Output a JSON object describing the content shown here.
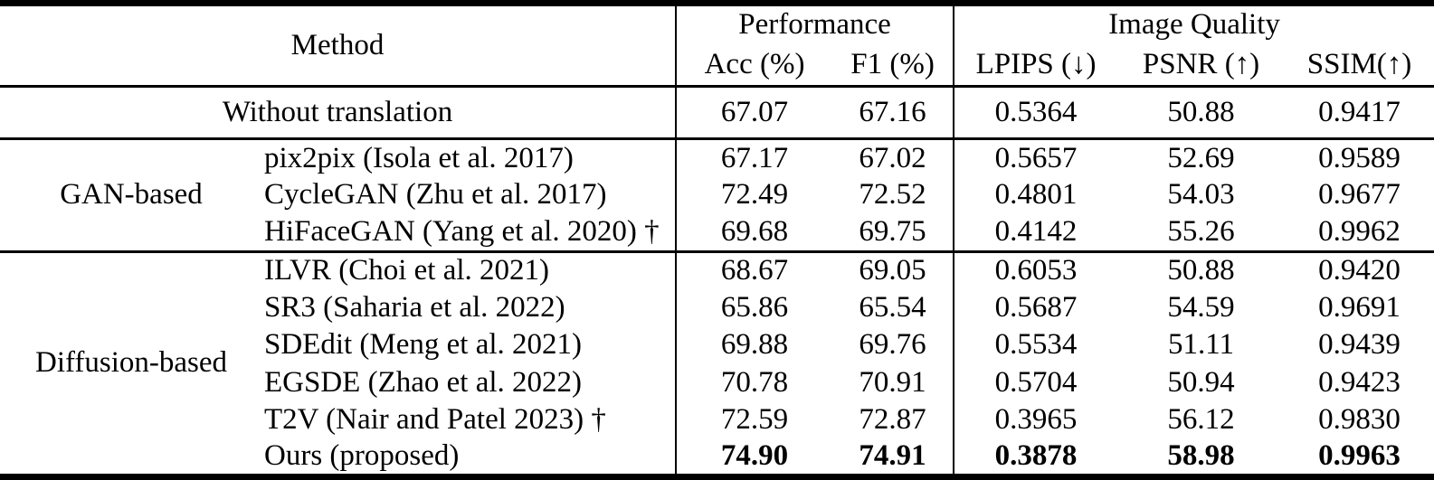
{
  "colors": {
    "text": "#000000",
    "background": "#ffffff",
    "rule": "#000000"
  },
  "table": {
    "header": {
      "method": "Method",
      "performance": "Performance",
      "image_quality": "Image Quality",
      "acc": "Acc (%)",
      "f1": "F1 (%)",
      "lpips": "LPIPS (↓)",
      "psnr": "PSNR (↑)",
      "ssim": "SSIM(↑)"
    },
    "baseline": {
      "method": "Without translation",
      "acc": "67.07",
      "f1": "67.16",
      "lpips": "0.5364",
      "psnr": "50.88",
      "ssim": "0.9417"
    },
    "sections": [
      {
        "group": "GAN-based",
        "rows": [
          {
            "method": "pix2pix (Isola et al. 2017)",
            "acc": "67.17",
            "f1": "67.02",
            "lpips": "0.5657",
            "psnr": "52.69",
            "ssim": "0.9589"
          },
          {
            "method": "CycleGAN (Zhu et al. 2017)",
            "acc": "72.49",
            "f1": "72.52",
            "lpips": "0.4801",
            "psnr": "54.03",
            "ssim": "0.9677"
          },
          {
            "method": "HiFaceGAN (Yang et al. 2020) †",
            "acc": "69.68",
            "f1": "69.75",
            "lpips": "0.4142",
            "psnr": "55.26",
            "ssim": "0.9962"
          }
        ]
      },
      {
        "group": "Diffusion-based",
        "rows": [
          {
            "method": "ILVR (Choi et al. 2021)",
            "acc": "68.67",
            "f1": "69.05",
            "lpips": "0.6053",
            "psnr": "50.88",
            "ssim": "0.9420"
          },
          {
            "method": "SR3 (Saharia et al. 2022)",
            "acc": "65.86",
            "f1": "65.54",
            "lpips": "0.5687",
            "psnr": "54.59",
            "ssim": "0.9691"
          },
          {
            "method": "SDEdit (Meng et al. 2021)",
            "acc": "69.88",
            "f1": "69.76",
            "lpips": "0.5534",
            "psnr": "51.11",
            "ssim": "0.9439"
          },
          {
            "method": "EGSDE (Zhao et al. 2022)",
            "acc": "70.78",
            "f1": "70.91",
            "lpips": "0.5704",
            "psnr": "50.94",
            "ssim": "0.9423"
          },
          {
            "method": "T2V (Nair and Patel 2023) †",
            "acc": "72.59",
            "f1": "72.87",
            "lpips": "0.3965",
            "psnr": "56.12",
            "ssim": "0.9830"
          },
          {
            "method": "Ours (proposed)",
            "acc": "74.90",
            "f1": "74.91",
            "lpips": "0.3878",
            "psnr": "58.98",
            "ssim": "0.9963"
          }
        ]
      }
    ]
  }
}
